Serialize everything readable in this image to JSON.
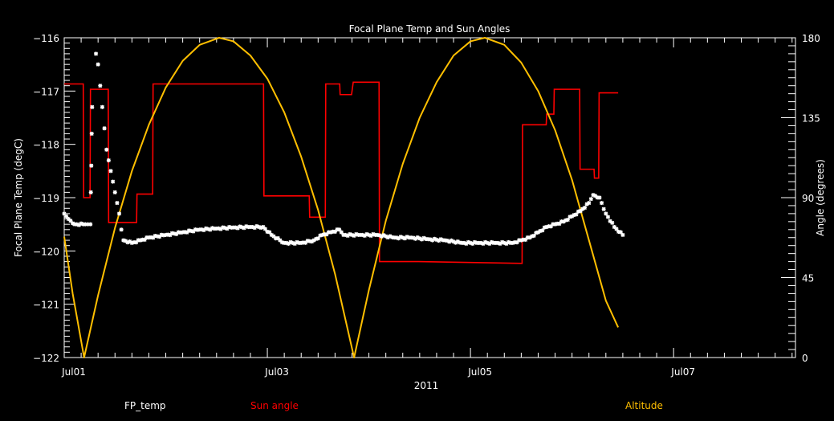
{
  "chart_data": {
    "type": "line",
    "title": "Focal Plane Temp and Sun Angles",
    "xlabel": "2011",
    "ylabel": "Focal Plane Temp (degC)",
    "y2label": "Angle (degrees)",
    "x_units": "hours since Jul01 00:00",
    "xlim": [
      0,
      172.8
    ],
    "ylim": [
      -122,
      -116
    ],
    "y2lim": [
      0,
      180
    ],
    "x_ticks": [
      {
        "value": 0,
        "label": "Jul01"
      },
      {
        "value": 48,
        "label": "Jul03"
      },
      {
        "value": 96,
        "label": "Jul05"
      },
      {
        "value": 144,
        "label": "Jul07"
      }
    ],
    "x_minor_step": 4,
    "y_ticks": [
      {
        "value": -122,
        "label": "−122"
      },
      {
        "value": -121,
        "label": "−121"
      },
      {
        "value": -120,
        "label": "−120"
      },
      {
        "value": -119,
        "label": "−119"
      },
      {
        "value": -118,
        "label": "−118"
      },
      {
        "value": -117,
        "label": "−117"
      },
      {
        "value": -116,
        "label": "−116"
      }
    ],
    "y2_ticks": [
      {
        "value": 0,
        "label": "0"
      },
      {
        "value": 45,
        "label": "45"
      },
      {
        "value": 90,
        "label": "90"
      },
      {
        "value": 135,
        "label": "135"
      },
      {
        "value": 180,
        "label": "180"
      }
    ],
    "grid": false,
    "legend_position": "bottom",
    "series": [
      {
        "name": "FP_temp",
        "axis": "left",
        "style": "stars",
        "color": "#ffffff",
        "points": [
          [
            0,
            -119.3
          ],
          [
            1,
            -119.4
          ],
          [
            2.5,
            -119.5
          ],
          [
            5,
            -119.5
          ],
          [
            6.2,
            -119.5
          ],
          [
            6.3,
            -118.9
          ],
          [
            6.4,
            -118.4
          ],
          [
            6.5,
            -117.8
          ],
          [
            6.6,
            -117.3
          ],
          [
            7.5,
            -116.3
          ],
          [
            8,
            -116.5
          ],
          [
            8.5,
            -116.9
          ],
          [
            9,
            -117.3
          ],
          [
            9.5,
            -117.7
          ],
          [
            10,
            -118.1
          ],
          [
            11,
            -118.5
          ],
          [
            12,
            -118.9
          ],
          [
            13,
            -119.3
          ],
          [
            13.5,
            -119.6
          ],
          [
            14,
            -119.8
          ],
          [
            16,
            -119.85
          ],
          [
            18,
            -119.8
          ],
          [
            20,
            -119.75
          ],
          [
            24,
            -119.7
          ],
          [
            28,
            -119.65
          ],
          [
            32,
            -119.6
          ],
          [
            36,
            -119.58
          ],
          [
            40,
            -119.56
          ],
          [
            44,
            -119.55
          ],
          [
            47,
            -119.55
          ],
          [
            49,
            -119.7
          ],
          [
            52,
            -119.85
          ],
          [
            56,
            -119.85
          ],
          [
            59,
            -119.8
          ],
          [
            61,
            -119.7
          ],
          [
            63,
            -119.65
          ],
          [
            65,
            -119.6
          ],
          [
            66,
            -119.7
          ],
          [
            70,
            -119.7
          ],
          [
            74,
            -119.7
          ],
          [
            78,
            -119.75
          ],
          [
            82,
            -119.75
          ],
          [
            86,
            -119.78
          ],
          [
            90,
            -119.8
          ],
          [
            94,
            -119.85
          ],
          [
            98,
            -119.85
          ],
          [
            102,
            -119.85
          ],
          [
            106,
            -119.85
          ],
          [
            108,
            -119.8
          ],
          [
            110,
            -119.75
          ],
          [
            112,
            -119.65
          ],
          [
            114,
            -119.55
          ],
          [
            116,
            -119.5
          ],
          [
            118,
            -119.45
          ],
          [
            120,
            -119.35
          ],
          [
            122,
            -119.25
          ],
          [
            124,
            -119.1
          ],
          [
            125,
            -118.95
          ],
          [
            126.5,
            -119.0
          ],
          [
            128,
            -119.3
          ],
          [
            130,
            -119.55
          ],
          [
            132,
            -119.7
          ]
        ]
      },
      {
        "name": "Sun angle",
        "axis": "right",
        "style": "step",
        "color": "#ff0000",
        "points": [
          [
            0,
            154
          ],
          [
            4.5,
            154
          ],
          [
            4.6,
            90
          ],
          [
            6.1,
            90
          ],
          [
            6.2,
            151
          ],
          [
            10.4,
            151
          ],
          [
            10.5,
            76
          ],
          [
            17.1,
            76
          ],
          [
            17.2,
            92
          ],
          [
            20.9,
            92
          ],
          [
            21,
            154
          ],
          [
            47.1,
            154
          ],
          [
            47.2,
            91
          ],
          [
            57.9,
            91
          ],
          [
            58,
            79
          ],
          [
            61.7,
            79
          ],
          [
            61.8,
            154
          ],
          [
            65.1,
            154
          ],
          [
            65.2,
            148
          ],
          [
            67.9,
            148
          ],
          [
            68.3,
            155
          ],
          [
            74.4,
            155
          ],
          [
            74.5,
            54
          ],
          [
            83.7,
            54
          ],
          [
            108.2,
            53
          ],
          [
            108.3,
            131
          ],
          [
            113.9,
            131
          ],
          [
            114,
            137
          ],
          [
            115.7,
            137
          ],
          [
            115.8,
            151
          ],
          [
            121.8,
            151
          ],
          [
            121.9,
            106
          ],
          [
            125.2,
            106
          ],
          [
            125.3,
            101
          ],
          [
            126.3,
            101
          ],
          [
            126.4,
            149
          ],
          [
            130.9,
            149
          ]
        ]
      },
      {
        "name": "Altitude",
        "axis": "right",
        "style": "line",
        "color": "#ffbf00",
        "points": [
          [
            0,
            68
          ],
          [
            2,
            36
          ],
          [
            4.7,
            0
          ],
          [
            8,
            35
          ],
          [
            12,
            73
          ],
          [
            16,
            105
          ],
          [
            20,
            131
          ],
          [
            24,
            152
          ],
          [
            28,
            167
          ],
          [
            32,
            176
          ],
          [
            36.6,
            180
          ],
          [
            40,
            178
          ],
          [
            44,
            170
          ],
          [
            48,
            157
          ],
          [
            52,
            138
          ],
          [
            56,
            113
          ],
          [
            60,
            83
          ],
          [
            64,
            47
          ],
          [
            68.5,
            0
          ],
          [
            72,
            38
          ],
          [
            76,
            77
          ],
          [
            80,
            109
          ],
          [
            84,
            135
          ],
          [
            88,
            155
          ],
          [
            92,
            170
          ],
          [
            96,
            178
          ],
          [
            99.4,
            180
          ],
          [
            104,
            176
          ],
          [
            108,
            166
          ],
          [
            112,
            150
          ],
          [
            116,
            128
          ],
          [
            120,
            100
          ],
          [
            124,
            66
          ],
          [
            128,
            32
          ],
          [
            130.9,
            17
          ]
        ]
      }
    ]
  }
}
